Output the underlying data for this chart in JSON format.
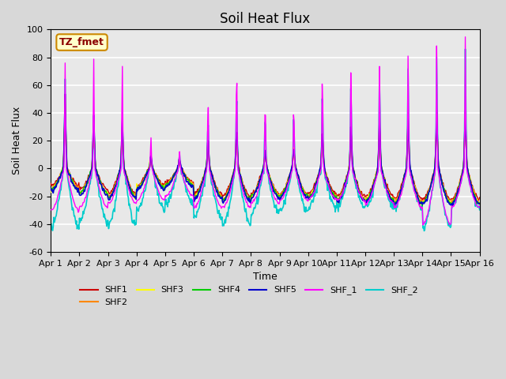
{
  "title": "Soil Heat Flux",
  "xlabel": "Time",
  "ylabel": "Soil Heat Flux",
  "ylim": [
    -60,
    100
  ],
  "xlim": [
    0,
    15
  ],
  "xtick_labels": [
    "Apr 1",
    "Apr 2",
    "Apr 3",
    "Apr 4",
    "Apr 5",
    "Apr 6",
    "Apr 7",
    "Apr 8",
    "Apr 9",
    "Apr 10",
    "Apr 11",
    "Apr 12",
    "Apr 13",
    "Apr 14",
    "Apr 15",
    "Apr 16"
  ],
  "ytick_values": [
    -60,
    -40,
    -20,
    0,
    20,
    40,
    60,
    80,
    100
  ],
  "plot_bg_color": "#e8e8e8",
  "fig_bg_color": "#d8d8d8",
  "series": {
    "SHF1": {
      "color": "#cc0000",
      "lw": 1.0
    },
    "SHF2": {
      "color": "#ff8800",
      "lw": 1.0
    },
    "SHF3": {
      "color": "#ffff00",
      "lw": 1.0
    },
    "SHF4": {
      "color": "#00cc00",
      "lw": 1.0
    },
    "SHF5": {
      "color": "#0000cc",
      "lw": 1.2
    },
    "SHF_1": {
      "color": "#ff00ff",
      "lw": 1.0
    },
    "SHF_2": {
      "color": "#00cccc",
      "lw": 1.2
    }
  },
  "annotation_text": "TZ_fmet",
  "annotation_fontsize": 9,
  "title_fontsize": 12,
  "label_fontsize": 9,
  "tick_fontsize": 8,
  "legend_fontsize": 8
}
